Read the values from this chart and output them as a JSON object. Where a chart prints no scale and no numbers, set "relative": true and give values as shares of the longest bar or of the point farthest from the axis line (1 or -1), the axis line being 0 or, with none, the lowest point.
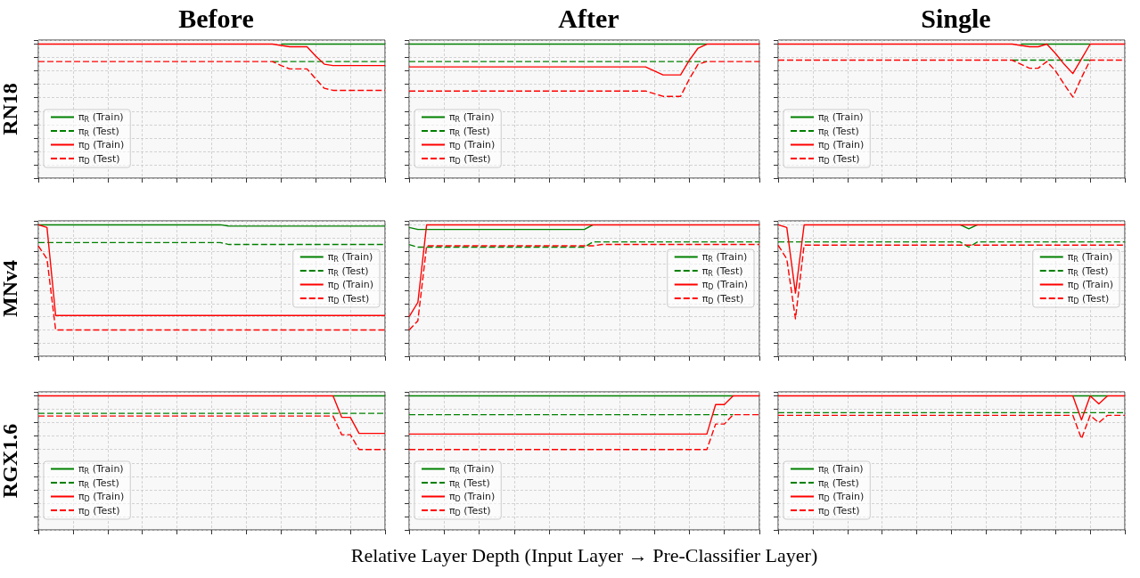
{
  "chart_data": [
    {
      "type": "line",
      "title": "Before",
      "ylabel": "RN18",
      "relative": true,
      "grid": true,
      "legend": "left",
      "categories": [
        null,
        null,
        null,
        null,
        null,
        null,
        null,
        null,
        null,
        null,
        null,
        null,
        null,
        null,
        null,
        null,
        null,
        null,
        null,
        null,
        null,
        null,
        null,
        null,
        null,
        null,
        null,
        null,
        null,
        null,
        null,
        null,
        null,
        null,
        null,
        null,
        null,
        null,
        null,
        null,
        null
      ],
      "series": [
        {
          "name": "π$_{R}$ (Train)",
          "color": "#008000",
          "line_style": "solid",
          "values": [
            null,
            null,
            null,
            null,
            null,
            null,
            null,
            null,
            null,
            null,
            null,
            null,
            null,
            null,
            null,
            null,
            null,
            null,
            null,
            null,
            null,
            null,
            null,
            null,
            null,
            null,
            null,
            null,
            1,
            1,
            1,
            1,
            1,
            1,
            1,
            1,
            1,
            1,
            1,
            1,
            1
          ]
        },
        {
          "name": "π$_{R}$ (Test)",
          "color": "#008000",
          "line_style": "dashed",
          "values": [
            null,
            null,
            null,
            null,
            null,
            null,
            null,
            null,
            null,
            null,
            null,
            null,
            null,
            null,
            null,
            null,
            null,
            null,
            null,
            null,
            null,
            null,
            null,
            null,
            null,
            null,
            null,
            0.87,
            0.87,
            0.87,
            0.87,
            0.87,
            0.87,
            0.87,
            0.87,
            0.87,
            0.87,
            0.87,
            0.87,
            0.87,
            0.87
          ]
        },
        {
          "name": "π$_{D}$ (Train)",
          "color": "#ff0000",
          "line_style": "solid",
          "values": [
            1,
            1,
            1,
            1,
            1,
            1,
            1,
            1,
            1,
            1,
            1,
            1,
            1,
            1,
            1,
            1,
            1,
            1,
            1,
            1,
            1,
            1,
            1,
            1,
            1,
            1,
            1,
            1,
            0.99,
            0.98,
            0.98,
            0.98,
            0.91,
            0.85,
            0.84,
            0.84,
            0.84,
            0.84,
            0.84,
            0.84,
            0.84
          ]
        },
        {
          "name": "π$_{D}$ (Test)",
          "color": "#ff0000",
          "line_style": "dashed",
          "values": [
            0.87,
            0.87,
            0.87,
            0.87,
            0.87,
            0.87,
            0.87,
            0.87,
            0.87,
            0.87,
            0.87,
            0.87,
            0.87,
            0.87,
            0.87,
            0.87,
            0.87,
            0.87,
            0.87,
            0.87,
            0.87,
            0.87,
            0.87,
            0.87,
            0.87,
            0.87,
            0.87,
            0.87,
            0.84,
            0.815,
            0.815,
            0.815,
            0.74,
            0.67,
            0.655,
            0.655,
            0.655,
            0.655,
            0.655,
            0.655,
            0.655
          ]
        }
      ]
    },
    {
      "type": "line",
      "title": "After",
      "relative": true,
      "grid": true,
      "legend": "left",
      "categories": [
        null,
        null,
        null,
        null,
        null,
        null,
        null,
        null,
        null,
        null,
        null,
        null,
        null,
        null,
        null,
        null,
        null,
        null,
        null,
        null,
        null,
        null,
        null,
        null,
        null,
        null,
        null,
        null,
        null,
        null,
        null,
        null,
        null,
        null,
        null,
        null,
        null,
        null,
        null,
        null,
        null
      ],
      "series": [
        {
          "name": "π$_{R}$ (Train)",
          "color": "#008000",
          "line_style": "solid",
          "values": [
            1,
            1,
            1,
            1,
            1,
            1,
            1,
            1,
            1,
            1,
            1,
            1,
            1,
            1,
            1,
            1,
            1,
            1,
            1,
            1,
            1,
            1,
            1,
            1,
            1,
            1,
            1,
            1,
            1,
            1,
            1,
            1,
            1,
            1,
            1,
            null,
            null,
            null,
            null,
            null,
            null
          ]
        },
        {
          "name": "π$_{R}$ (Test)",
          "color": "#008000",
          "line_style": "dashed",
          "values": [
            0.87,
            0.87,
            0.87,
            0.87,
            0.87,
            0.87,
            0.87,
            0.87,
            0.87,
            0.87,
            0.87,
            0.87,
            0.87,
            0.87,
            0.87,
            0.87,
            0.87,
            0.87,
            0.87,
            0.87,
            0.87,
            0.87,
            0.87,
            0.87,
            0.87,
            0.87,
            0.87,
            0.87,
            0.87,
            0.87,
            0.87,
            0.87,
            0.87,
            0.87,
            0.87,
            null,
            null,
            null,
            null,
            null,
            null
          ]
        },
        {
          "name": "π$_{D}$ (Train)",
          "color": "#ff0000",
          "line_style": "solid",
          "values": [
            0.83,
            0.83,
            0.83,
            0.83,
            0.83,
            0.83,
            0.83,
            0.83,
            0.83,
            0.83,
            0.83,
            0.83,
            0.83,
            0.83,
            0.83,
            0.83,
            0.83,
            0.83,
            0.83,
            0.83,
            0.83,
            0.83,
            0.83,
            0.83,
            0.83,
            0.83,
            0.83,
            0.83,
            0.8,
            0.77,
            0.77,
            0.77,
            0.88,
            0.97,
            1,
            1,
            1,
            1,
            1,
            1,
            1
          ]
        },
        {
          "name": "π$_{D}$ (Test)",
          "color": "#ff0000",
          "line_style": "dashed",
          "values": [
            0.65,
            0.65,
            0.65,
            0.65,
            0.65,
            0.65,
            0.65,
            0.65,
            0.65,
            0.65,
            0.65,
            0.65,
            0.65,
            0.65,
            0.65,
            0.65,
            0.65,
            0.65,
            0.65,
            0.65,
            0.65,
            0.65,
            0.65,
            0.65,
            0.65,
            0.65,
            0.65,
            0.65,
            0.63,
            0.61,
            0.61,
            0.61,
            0.74,
            0.85,
            0.87,
            0.87,
            0.87,
            0.87,
            0.87,
            0.87,
            0.87
          ]
        }
      ]
    },
    {
      "type": "line",
      "title": "Single",
      "relative": true,
      "grid": true,
      "legend": "left",
      "categories": [
        null,
        null,
        null,
        null,
        null,
        null,
        null,
        null,
        null,
        null,
        null,
        null,
        null,
        null,
        null,
        null,
        null,
        null,
        null,
        null,
        null,
        null,
        null,
        null,
        null,
        null,
        null,
        null,
        null,
        null,
        null,
        null,
        null,
        null,
        null,
        null,
        null,
        null,
        null,
        null,
        null
      ],
      "series": [
        {
          "name": "π$_{R}$ (Train)",
          "color": "#008000",
          "line_style": "solid",
          "values": [
            null,
            null,
            null,
            null,
            null,
            null,
            null,
            null,
            null,
            null,
            null,
            null,
            null,
            null,
            null,
            null,
            null,
            null,
            null,
            null,
            null,
            null,
            null,
            null,
            null,
            null,
            null,
            null,
            1,
            1,
            1,
            1,
            1,
            1,
            1,
            1,
            1,
            null,
            null,
            null,
            null
          ]
        },
        {
          "name": "π$_{R}$ (Test)",
          "color": "#008000",
          "line_style": "dashed",
          "values": [
            null,
            null,
            null,
            null,
            null,
            null,
            null,
            null,
            null,
            null,
            null,
            null,
            null,
            null,
            null,
            null,
            null,
            null,
            null,
            null,
            null,
            null,
            null,
            null,
            null,
            null,
            null,
            0.88,
            0.88,
            0.88,
            0.88,
            0.88,
            0.88,
            0.88,
            0.88,
            0.88,
            0.88,
            null,
            null,
            null,
            null
          ]
        },
        {
          "name": "π$_{D}$ (Train)",
          "color": "#ff0000",
          "line_style": "solid",
          "values": [
            1,
            1,
            1,
            1,
            1,
            1,
            1,
            1,
            1,
            1,
            1,
            1,
            1,
            1,
            1,
            1,
            1,
            1,
            1,
            1,
            1,
            1,
            1,
            1,
            1,
            1,
            1,
            1,
            0.99,
            0.98,
            0.98,
            1,
            0.93,
            0.85,
            0.78,
            0.89,
            1,
            1,
            1,
            1,
            1
          ]
        },
        {
          "name": "π$_{D}$ (Test)",
          "color": "#ff0000",
          "line_style": "dashed",
          "values": [
            0.88,
            0.88,
            0.88,
            0.88,
            0.88,
            0.88,
            0.88,
            0.88,
            0.88,
            0.88,
            0.88,
            0.88,
            0.88,
            0.88,
            0.88,
            0.88,
            0.88,
            0.88,
            0.88,
            0.88,
            0.88,
            0.88,
            0.88,
            0.88,
            0.88,
            0.88,
            0.88,
            0.88,
            0.85,
            0.82,
            0.82,
            0.87,
            0.8,
            0.7,
            0.605,
            0.75,
            0.88,
            0.88,
            0.88,
            0.88,
            0.88
          ]
        }
      ]
    },
    {
      "type": "line",
      "ylabel": "MNv4",
      "relative": true,
      "grid": true,
      "legend": "right",
      "categories": [
        null,
        null,
        null,
        null,
        null,
        null,
        null,
        null,
        null,
        null,
        null,
        null,
        null,
        null,
        null,
        null,
        null,
        null,
        null,
        null,
        null,
        null,
        null,
        null,
        null,
        null,
        null,
        null,
        null,
        null,
        null,
        null,
        null,
        null,
        null,
        null,
        null,
        null,
        null,
        null,
        null
      ],
      "series": [
        {
          "name": "π$_{R}$ (Train)",
          "color": "#008000",
          "line_style": "solid",
          "values": [
            1,
            1,
            1,
            1,
            1,
            1,
            1,
            1,
            1,
            1,
            1,
            1,
            1,
            1,
            1,
            1,
            1,
            1,
            1,
            1,
            1,
            1,
            0.99,
            0.99,
            0.99,
            0.99,
            0.99,
            0.99,
            0.99,
            0.99,
            0.99,
            0.99,
            0.99,
            0.99,
            0.99,
            0.99,
            0.99,
            0.99,
            0.99,
            0.99,
            0.99
          ]
        },
        {
          "name": "π$_{R}$ (Test)",
          "color": "#008000",
          "line_style": "dashed",
          "values": [
            0.865,
            0.865,
            0.865,
            0.865,
            0.865,
            0.865,
            0.865,
            0.865,
            0.865,
            0.865,
            0.865,
            0.865,
            0.865,
            0.865,
            0.865,
            0.865,
            0.865,
            0.865,
            0.865,
            0.865,
            0.865,
            0.865,
            0.85,
            0.85,
            0.85,
            0.85,
            0.85,
            0.85,
            0.85,
            0.85,
            0.85,
            0.85,
            0.85,
            0.85,
            0.85,
            0.85,
            0.85,
            0.85,
            0.85,
            0.85,
            0.85
          ]
        },
        {
          "name": "π$_{D}$ (Train)",
          "color": "#ff0000",
          "line_style": "solid",
          "values": [
            1,
            0.98,
            0.31,
            0.31,
            0.31,
            0.31,
            0.31,
            0.31,
            0.31,
            0.31,
            0.31,
            0.31,
            0.31,
            0.31,
            0.31,
            0.31,
            0.31,
            0.31,
            0.31,
            0.31,
            0.31,
            0.31,
            0.31,
            0.31,
            0.31,
            0.31,
            0.31,
            0.31,
            0.31,
            0.31,
            0.31,
            0.31,
            0.31,
            0.31,
            0.31,
            0.31,
            0.31,
            0.31,
            0.31,
            0.31,
            0.31
          ]
        },
        {
          "name": "π$_{D}$ (Test)",
          "color": "#ff0000",
          "line_style": "dashed",
          "values": [
            0.84,
            0.74,
            0.2,
            0.2,
            0.2,
            0.2,
            0.2,
            0.2,
            0.2,
            0.2,
            0.2,
            0.2,
            0.2,
            0.2,
            0.2,
            0.2,
            0.2,
            0.2,
            0.2,
            0.2,
            0.2,
            0.2,
            0.2,
            0.2,
            0.2,
            0.2,
            0.2,
            0.2,
            0.2,
            0.2,
            0.2,
            0.2,
            0.2,
            0.2,
            0.2,
            0.2,
            0.2,
            0.2,
            0.2,
            0.2,
            0.2
          ]
        }
      ]
    },
    {
      "type": "line",
      "relative": true,
      "grid": true,
      "legend": "right",
      "categories": [
        null,
        null,
        null,
        null,
        null,
        null,
        null,
        null,
        null,
        null,
        null,
        null,
        null,
        null,
        null,
        null,
        null,
        null,
        null,
        null,
        null,
        null,
        null,
        null,
        null,
        null,
        null,
        null,
        null,
        null,
        null,
        null,
        null,
        null,
        null,
        null,
        null,
        null,
        null,
        null,
        null
      ],
      "series": [
        {
          "name": "π$_{R}$ (Train)",
          "color": "#008000",
          "line_style": "solid",
          "values": [
            0.98,
            0.965,
            0.965,
            0.965,
            0.965,
            0.965,
            0.965,
            0.965,
            0.965,
            0.965,
            0.965,
            0.965,
            0.965,
            0.965,
            0.965,
            0.965,
            0.965,
            0.965,
            0.965,
            0.965,
            0.965,
            1,
            null,
            null,
            null,
            null,
            null,
            null,
            null,
            null,
            null,
            null,
            null,
            null,
            null,
            null,
            null,
            null,
            null,
            null,
            null
          ]
        },
        {
          "name": "π$_{R}$ (Test)",
          "color": "#008000",
          "line_style": "dashed",
          "values": [
            0.85,
            0.83,
            0.83,
            0.83,
            0.83,
            0.83,
            0.83,
            0.83,
            0.83,
            0.83,
            0.83,
            0.83,
            0.83,
            0.83,
            0.83,
            0.83,
            0.83,
            0.83,
            0.83,
            0.83,
            0.83,
            0.87,
            0.87,
            0.87,
            0.87,
            0.87,
            0.87,
            0.87,
            0.87,
            0.87,
            0.87,
            0.87,
            0.87,
            0.87,
            0.87,
            0.87,
            0.87,
            0.87,
            0.87,
            0.87,
            0.87
          ]
        },
        {
          "name": "π$_{D}$ (Train)",
          "color": "#ff0000",
          "line_style": "solid",
          "values": [
            0.3,
            0.41,
            1,
            1,
            1,
            1,
            1,
            1,
            1,
            1,
            1,
            1,
            1,
            1,
            1,
            1,
            1,
            1,
            1,
            1,
            1,
            1,
            1,
            1,
            1,
            1,
            1,
            1,
            1,
            1,
            1,
            1,
            1,
            1,
            1,
            1,
            1,
            1,
            1,
            1,
            1
          ]
        },
        {
          "name": "π$_{D}$ (Test)",
          "color": "#ff0000",
          "line_style": "dashed",
          "values": [
            0.2,
            0.27,
            0.84,
            0.84,
            0.84,
            0.84,
            0.84,
            0.84,
            0.84,
            0.84,
            0.84,
            0.84,
            0.84,
            0.84,
            0.84,
            0.84,
            0.84,
            0.84,
            0.84,
            0.84,
            0.84,
            0.84,
            0.85,
            0.85,
            0.85,
            0.85,
            0.85,
            0.85,
            0.85,
            0.85,
            0.85,
            0.85,
            0.85,
            0.85,
            0.85,
            0.85,
            0.85,
            0.85,
            0.85,
            0.85,
            0.85
          ]
        }
      ]
    },
    {
      "type": "line",
      "relative": true,
      "grid": true,
      "legend": "right",
      "categories": [
        null,
        null,
        null,
        null,
        null,
        null,
        null,
        null,
        null,
        null,
        null,
        null,
        null,
        null,
        null,
        null,
        null,
        null,
        null,
        null,
        null,
        null,
        null,
        null,
        null,
        null,
        null,
        null,
        null,
        null,
        null,
        null,
        null,
        null,
        null,
        null,
        null,
        null,
        null,
        null,
        null
      ],
      "series": [
        {
          "name": "π$_{R}$ (Train)",
          "color": "#008000",
          "line_style": "solid",
          "values": [
            null,
            null,
            null,
            null,
            null,
            null,
            null,
            null,
            null,
            null,
            null,
            null,
            null,
            null,
            null,
            null,
            null,
            null,
            null,
            null,
            null,
            1,
            0.97,
            1,
            null,
            null,
            null,
            null,
            null,
            null,
            null,
            null,
            null,
            null,
            null,
            null,
            null,
            null,
            null,
            null,
            null
          ]
        },
        {
          "name": "π$_{R}$ (Test)",
          "color": "#008000",
          "line_style": "dashed",
          "values": [
            0.87,
            0.87,
            0.87,
            0.87,
            0.87,
            0.87,
            0.87,
            0.87,
            0.87,
            0.87,
            0.87,
            0.87,
            0.87,
            0.87,
            0.87,
            0.87,
            0.87,
            0.87,
            0.87,
            0.87,
            0.87,
            0.87,
            0.83,
            0.87,
            0.87,
            0.87,
            0.87,
            0.87,
            0.87,
            0.87,
            0.87,
            0.87,
            0.87,
            0.87,
            0.87,
            0.87,
            0.87,
            0.87,
            0.87,
            0.87,
            0.87
          ]
        },
        {
          "name": "π$_{D}$ (Train)",
          "color": "#ff0000",
          "line_style": "solid",
          "values": [
            1,
            0.98,
            0.48,
            1,
            1,
            1,
            1,
            1,
            1,
            1,
            1,
            1,
            1,
            1,
            1,
            1,
            1,
            1,
            1,
            1,
            1,
            1,
            1,
            1,
            1,
            1,
            1,
            1,
            1,
            1,
            1,
            1,
            1,
            1,
            1,
            1,
            1,
            1,
            1,
            1,
            1
          ]
        },
        {
          "name": "π$_{D}$ (Test)",
          "color": "#ff0000",
          "line_style": "dashed",
          "values": [
            0.845,
            0.74,
            0.285,
            0.845,
            0.845,
            0.845,
            0.845,
            0.845,
            0.845,
            0.845,
            0.845,
            0.845,
            0.845,
            0.845,
            0.845,
            0.845,
            0.845,
            0.845,
            0.845,
            0.845,
            0.845,
            0.845,
            0.845,
            0.845,
            0.845,
            0.845,
            0.845,
            0.845,
            0.845,
            0.845,
            0.845,
            0.845,
            0.845,
            0.845,
            0.845,
            0.845,
            0.845,
            0.845,
            0.845,
            0.845,
            0.845
          ]
        }
      ]
    },
    {
      "type": "line",
      "ylabel": "RGX1.6",
      "relative": true,
      "grid": true,
      "legend": "left",
      "categories": [
        null,
        null,
        null,
        null,
        null,
        null,
        null,
        null,
        null,
        null,
        null,
        null,
        null,
        null,
        null,
        null,
        null,
        null,
        null,
        null,
        null,
        null,
        null,
        null,
        null,
        null,
        null,
        null,
        null,
        null,
        null,
        null,
        null,
        null,
        null,
        null,
        null,
        null,
        null,
        null,
        null
      ],
      "series": [
        {
          "name": "π$_{R}$ (Train)",
          "color": "#008000",
          "line_style": "solid",
          "values": [
            null,
            null,
            null,
            null,
            null,
            null,
            null,
            null,
            null,
            null,
            null,
            null,
            null,
            null,
            null,
            null,
            null,
            null,
            null,
            null,
            null,
            null,
            null,
            null,
            null,
            null,
            null,
            null,
            null,
            null,
            null,
            null,
            null,
            null,
            1,
            1,
            1,
            1,
            1,
            1,
            1
          ]
        },
        {
          "name": "π$_{R}$ (Test)",
          "color": "#008000",
          "line_style": "dashed",
          "values": [
            0.87,
            0.87,
            0.87,
            0.87,
            0.87,
            0.87,
            0.87,
            0.87,
            0.87,
            0.87,
            0.87,
            0.87,
            0.87,
            0.87,
            0.87,
            0.87,
            0.87,
            0.87,
            0.87,
            0.87,
            0.87,
            0.87,
            0.87,
            0.87,
            0.87,
            0.87,
            0.87,
            0.87,
            0.87,
            0.87,
            0.87,
            0.87,
            0.87,
            0.87,
            0.87,
            0.87,
            0.87,
            0.87,
            0.87,
            0.87,
            0.87
          ]
        },
        {
          "name": "π$_{D}$ (Train)",
          "color": "#ff0000",
          "line_style": "solid",
          "values": [
            1,
            1,
            1,
            1,
            1,
            1,
            1,
            1,
            1,
            1,
            1,
            1,
            1,
            1,
            1,
            1,
            1,
            1,
            1,
            1,
            1,
            1,
            1,
            1,
            1,
            1,
            1,
            1,
            1,
            1,
            1,
            1,
            1,
            1,
            1,
            0.84,
            0.84,
            0.72,
            0.72,
            0.72,
            0.72
          ]
        },
        {
          "name": "π$_{D}$ (Test)",
          "color": "#ff0000",
          "line_style": "dashed",
          "values": [
            0.85,
            0.85,
            0.85,
            0.85,
            0.85,
            0.85,
            0.85,
            0.85,
            0.85,
            0.85,
            0.85,
            0.85,
            0.85,
            0.85,
            0.85,
            0.85,
            0.85,
            0.85,
            0.85,
            0.85,
            0.85,
            0.85,
            0.85,
            0.85,
            0.85,
            0.85,
            0.85,
            0.85,
            0.85,
            0.85,
            0.85,
            0.85,
            0.85,
            0.85,
            0.85,
            0.71,
            0.71,
            0.6,
            0.6,
            0.6,
            0.6
          ]
        }
      ]
    },
    {
      "type": "line",
      "xlabel": "Relative Layer Depth (Input Layer → Pre-Classifier Layer)",
      "relative": true,
      "grid": true,
      "legend": "left",
      "categories": [
        null,
        null,
        null,
        null,
        null,
        null,
        null,
        null,
        null,
        null,
        null,
        null,
        null,
        null,
        null,
        null,
        null,
        null,
        null,
        null,
        null,
        null,
        null,
        null,
        null,
        null,
        null,
        null,
        null,
        null,
        null,
        null,
        null,
        null,
        null,
        null,
        null,
        null,
        null,
        null,
        null
      ],
      "series": [
        {
          "name": "π$_{R}$ (Train)",
          "color": "#008000",
          "line_style": "solid",
          "values": [
            1,
            1,
            1,
            1,
            1,
            1,
            1,
            1,
            1,
            1,
            1,
            1,
            1,
            1,
            1,
            1,
            1,
            1,
            1,
            1,
            1,
            1,
            1,
            1,
            1,
            1,
            1,
            1,
            1,
            1,
            1,
            1,
            1,
            1,
            1,
            1,
            1,
            1,
            null,
            null,
            null
          ]
        },
        {
          "name": "π$_{R}$ (Test)",
          "color": "#008000",
          "line_style": "dashed",
          "values": [
            0.86,
            0.86,
            0.86,
            0.86,
            0.86,
            0.86,
            0.86,
            0.86,
            0.86,
            0.86,
            0.86,
            0.86,
            0.86,
            0.86,
            0.86,
            0.86,
            0.86,
            0.86,
            0.86,
            0.86,
            0.86,
            0.86,
            0.86,
            0.86,
            0.86,
            0.86,
            0.86,
            0.86,
            0.86,
            0.86,
            0.86,
            0.86,
            0.86,
            0.86,
            0.86,
            0.86,
            0.86,
            0.86,
            null,
            null,
            null
          ]
        },
        {
          "name": "π$_{D}$ (Train)",
          "color": "#ff0000",
          "line_style": "solid",
          "values": [
            0.715,
            0.715,
            0.715,
            0.715,
            0.715,
            0.715,
            0.715,
            0.715,
            0.715,
            0.715,
            0.715,
            0.715,
            0.715,
            0.715,
            0.715,
            0.715,
            0.715,
            0.715,
            0.715,
            0.715,
            0.715,
            0.715,
            0.715,
            0.715,
            0.715,
            0.715,
            0.715,
            0.715,
            0.715,
            0.715,
            0.715,
            0.715,
            0.715,
            0.715,
            0.715,
            0.935,
            0.935,
            1,
            1,
            1,
            1
          ]
        },
        {
          "name": "π$_{D}$ (Test)",
          "color": "#ff0000",
          "line_style": "dashed",
          "values": [
            0.6,
            0.6,
            0.6,
            0.6,
            0.6,
            0.6,
            0.6,
            0.6,
            0.6,
            0.6,
            0.6,
            0.6,
            0.6,
            0.6,
            0.6,
            0.6,
            0.6,
            0.6,
            0.6,
            0.6,
            0.6,
            0.6,
            0.6,
            0.6,
            0.6,
            0.6,
            0.6,
            0.6,
            0.6,
            0.6,
            0.6,
            0.6,
            0.6,
            0.6,
            0.6,
            0.79,
            0.79,
            0.86,
            0.86,
            0.86,
            0.86
          ]
        }
      ]
    },
    {
      "type": "line",
      "relative": true,
      "grid": true,
      "legend": "left",
      "categories": [
        null,
        null,
        null,
        null,
        null,
        null,
        null,
        null,
        null,
        null,
        null,
        null,
        null,
        null,
        null,
        null,
        null,
        null,
        null,
        null,
        null,
        null,
        null,
        null,
        null,
        null,
        null,
        null,
        null,
        null,
        null,
        null,
        null,
        null,
        null,
        null,
        null,
        null,
        null,
        null,
        null
      ],
      "series": [
        {
          "name": "π$_{R}$ (Train)",
          "color": "#008000",
          "line_style": "solid",
          "values": [
            null,
            null,
            null,
            null,
            null,
            null,
            null,
            null,
            null,
            null,
            null,
            null,
            null,
            null,
            null,
            null,
            null,
            null,
            null,
            null,
            null,
            null,
            null,
            null,
            null,
            null,
            null,
            null,
            null,
            null,
            null,
            null,
            null,
            null,
            1,
            1,
            1,
            1,
            1,
            null,
            null
          ]
        },
        {
          "name": "π$_{R}$ (Test)",
          "color": "#008000",
          "line_style": "dashed",
          "values": [
            0.875,
            0.875,
            0.875,
            0.875,
            0.875,
            0.875,
            0.875,
            0.875,
            0.875,
            0.875,
            0.875,
            0.875,
            0.875,
            0.875,
            0.875,
            0.875,
            0.875,
            0.875,
            0.875,
            0.875,
            0.875,
            0.875,
            0.875,
            0.875,
            0.875,
            0.875,
            0.875,
            0.875,
            0.875,
            0.875,
            0.875,
            0.875,
            0.875,
            0.875,
            0.875,
            0.875,
            0.875,
            0.875,
            0.875,
            0.875,
            0.875
          ]
        },
        {
          "name": "π$_{D}$ (Train)",
          "color": "#ff0000",
          "line_style": "solid",
          "values": [
            1,
            1,
            1,
            1,
            1,
            1,
            1,
            1,
            1,
            1,
            1,
            1,
            1,
            1,
            1,
            1,
            1,
            1,
            1,
            1,
            1,
            1,
            1,
            1,
            1,
            1,
            1,
            1,
            1,
            1,
            1,
            1,
            1,
            1,
            1,
            0.82,
            1,
            0.94,
            1,
            1,
            1
          ]
        },
        {
          "name": "π$_{D}$ (Test)",
          "color": "#ff0000",
          "line_style": "dashed",
          "values": [
            0.855,
            0.855,
            0.855,
            0.855,
            0.855,
            0.855,
            0.855,
            0.855,
            0.855,
            0.855,
            0.855,
            0.855,
            0.855,
            0.855,
            0.855,
            0.855,
            0.855,
            0.855,
            0.855,
            0.855,
            0.855,
            0.855,
            0.855,
            0.855,
            0.855,
            0.855,
            0.855,
            0.855,
            0.855,
            0.855,
            0.855,
            0.855,
            0.855,
            0.855,
            0.855,
            0.68,
            0.855,
            0.8,
            0.855,
            0.855,
            0.855
          ]
        }
      ]
    }
  ]
}
